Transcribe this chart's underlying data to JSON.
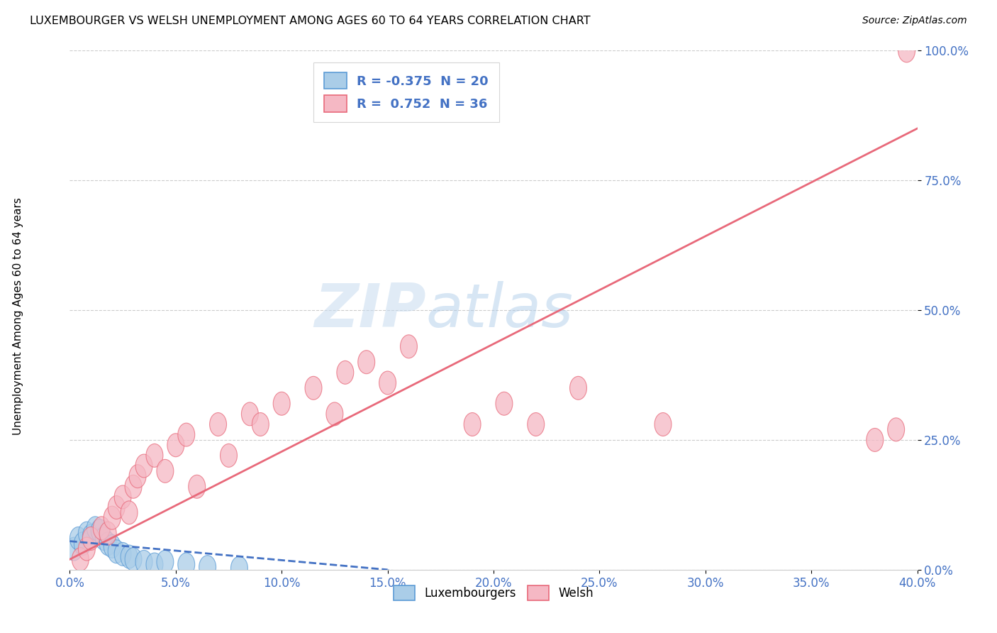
{
  "title": "LUXEMBOURGER VS WELSH UNEMPLOYMENT AMONG AGES 60 TO 64 YEARS CORRELATION CHART",
  "source": "Source: ZipAtlas.com",
  "ylabel_label": "Unemployment Among Ages 60 to 64 years",
  "xlim": [
    0.0,
    40.0
  ],
  "ylim": [
    0.0,
    100.0
  ],
  "yticks": [
    0.0,
    25.0,
    50.0,
    75.0,
    100.0
  ],
  "xticks": [
    0.0,
    5.0,
    10.0,
    15.0,
    20.0,
    25.0,
    30.0,
    35.0,
    40.0
  ],
  "legend_R_blue": "-0.375",
  "legend_N_blue": "20",
  "legend_R_pink": "0.752",
  "legend_N_pink": "36",
  "blue_fill_color": "#AACDE8",
  "pink_fill_color": "#F5B8C4",
  "blue_edge_color": "#5B9BD5",
  "pink_edge_color": "#E8697A",
  "blue_line_color": "#4472C4",
  "pink_line_color": "#E8697A",
  "watermark_zip": "ZIP",
  "watermark_atlas": "atlas",
  "watermark_color_zip": "#C8DCF0",
  "watermark_color_atlas": "#A0C4E8",
  "blue_scatter_x": [
    0.2,
    0.4,
    0.6,
    0.8,
    1.0,
    1.2,
    1.4,
    1.6,
    1.8,
    2.0,
    2.2,
    2.5,
    2.8,
    3.0,
    3.5,
    4.0,
    4.5,
    5.5,
    6.5,
    8.0
  ],
  "blue_scatter_y": [
    4.0,
    6.0,
    5.0,
    7.0,
    6.5,
    8.0,
    7.5,
    6.0,
    5.0,
    4.5,
    3.5,
    3.0,
    2.5,
    2.0,
    1.5,
    1.0,
    1.5,
    1.0,
    0.5,
    0.3
  ],
  "pink_scatter_x": [
    0.5,
    0.8,
    1.0,
    1.5,
    1.8,
    2.0,
    2.2,
    2.5,
    2.8,
    3.0,
    3.2,
    3.5,
    4.0,
    4.5,
    5.0,
    5.5,
    6.0,
    7.0,
    7.5,
    8.5,
    9.0,
    10.0,
    11.5,
    12.5,
    13.0,
    14.0,
    15.0,
    16.0,
    19.0,
    20.5,
    22.0,
    24.0,
    28.0,
    38.0,
    39.0,
    39.5
  ],
  "pink_scatter_y": [
    2.0,
    4.0,
    6.0,
    8.0,
    7.0,
    10.0,
    12.0,
    14.0,
    11.0,
    16.0,
    18.0,
    20.0,
    22.0,
    19.0,
    24.0,
    26.0,
    16.0,
    28.0,
    22.0,
    30.0,
    28.0,
    32.0,
    35.0,
    30.0,
    38.0,
    40.0,
    36.0,
    43.0,
    28.0,
    32.0,
    28.0,
    35.0,
    28.0,
    25.0,
    27.0,
    100.0
  ],
  "pink_line_x0": 0.0,
  "pink_line_y0": 2.0,
  "pink_line_x1": 40.0,
  "pink_line_y1": 85.0,
  "blue_line_x0": 0.0,
  "blue_line_y0": 5.5,
  "blue_line_x1": 15.0,
  "blue_line_y1": 0.0
}
